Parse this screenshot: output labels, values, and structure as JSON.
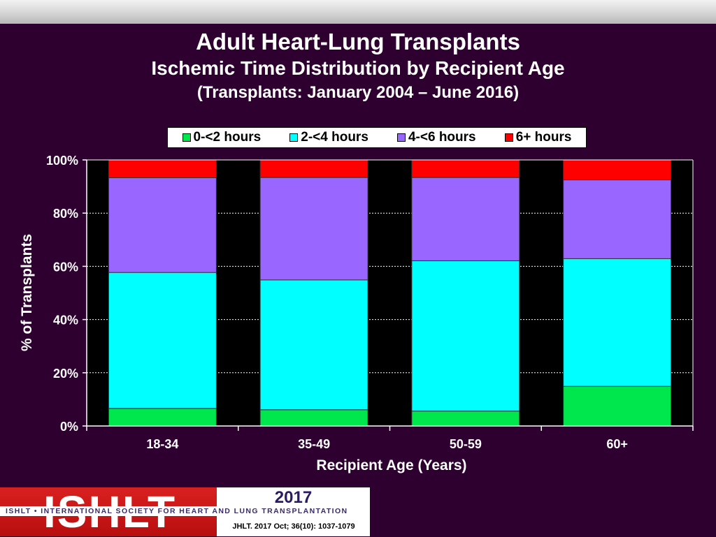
{
  "header": {
    "title": "Adult Heart-Lung Transplants",
    "subtitle": "Ischemic Time Distribution by Recipient Age",
    "period": "(Transplants: January 2004 – June 2016)"
  },
  "legend": [
    {
      "label": "0-<2 hours",
      "color": "#00e64d"
    },
    {
      "label": "2-<4 hours",
      "color": "#00ffff"
    },
    {
      "label": "4-<6 hours",
      "color": "#9966ff"
    },
    {
      "label": "6+ hours",
      "color": "#ff0000"
    }
  ],
  "chart_data": {
    "type": "bar",
    "stacked": true,
    "xlabel": "Recipient Age (Years)",
    "ylabel": "% of Transplants",
    "ylim": [
      0,
      100
    ],
    "yticks": [
      "0%",
      "20%",
      "40%",
      "60%",
      "80%",
      "100%"
    ],
    "categories": [
      "18-34",
      "35-49",
      "50-59",
      "60+"
    ],
    "series": [
      {
        "name": "0-<2 hours",
        "color": "#00e64d",
        "values": [
          6.6,
          6.1,
          5.6,
          14.9
        ]
      },
      {
        "name": "2-<4 hours",
        "color": "#00ffff",
        "values": [
          51.1,
          48.8,
          56.5,
          48.0
        ]
      },
      {
        "name": "4-<6 hours",
        "color": "#9966ff",
        "values": [
          35.6,
          38.5,
          31.3,
          29.6
        ]
      },
      {
        "name": "6+ hours",
        "color": "#ff0000",
        "values": [
          6.7,
          6.6,
          6.6,
          7.5
        ]
      }
    ],
    "grid": true,
    "legend_position": "top"
  },
  "footer": {
    "logo": "ISHLT",
    "org": "ISHLT • INTERNATIONAL SOCIETY FOR HEART AND LUNG TRANSPLANTATION",
    "year": "2017",
    "citation": "JHLT. 2017 Oct; 36(10): 1037-1079"
  }
}
